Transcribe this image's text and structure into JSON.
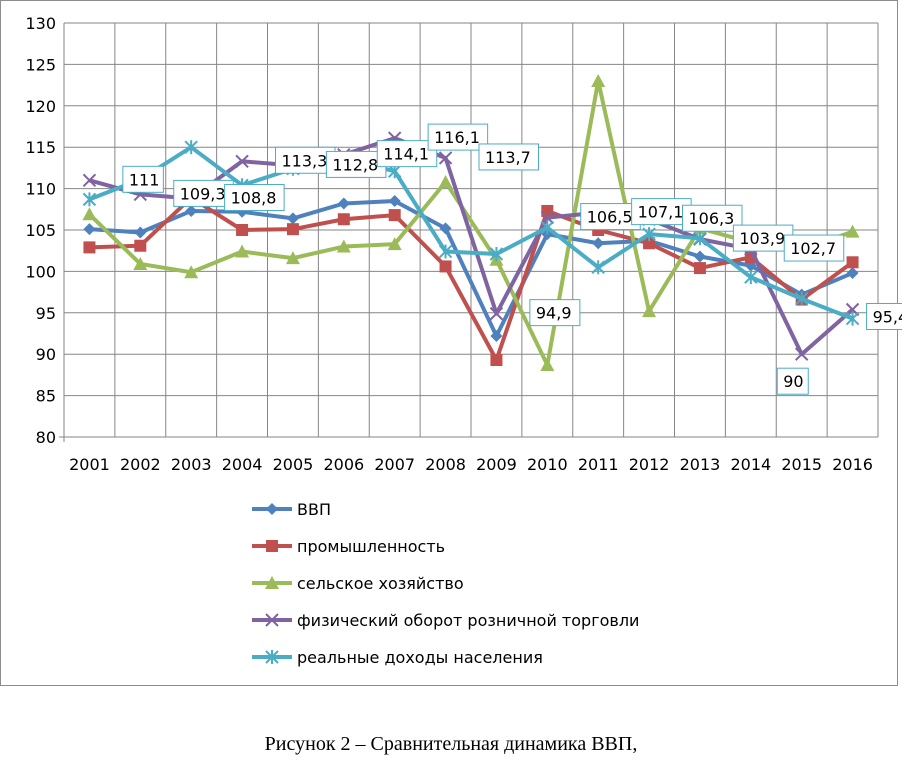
{
  "caption": "Рисунок 2 – Сравнительная динамика ВВП,",
  "chart_data": {
    "type": "line",
    "title": "",
    "xlabel": "",
    "ylabel": "",
    "ylim": [
      80,
      130
    ],
    "yticks": [
      80,
      85,
      90,
      95,
      100,
      105,
      110,
      115,
      120,
      125,
      130
    ],
    "grid": true,
    "legend_position": "bottom",
    "categories": [
      "2001",
      "2002",
      "2003",
      "2004",
      "2005",
      "2006",
      "2007",
      "2008",
      "2009",
      "2010",
      "2011",
      "2012",
      "2013",
      "2014",
      "2015",
      "2016"
    ],
    "series": [
      {
        "name": "ВВП",
        "color": "#4F81BD",
        "marker": "diamond",
        "values": [
          105.1,
          104.7,
          107.3,
          107.2,
          106.4,
          108.2,
          108.5,
          105.2,
          92.2,
          104.5,
          103.4,
          103.7,
          101.8,
          100.7,
          97.2,
          99.8
        ]
      },
      {
        "name": "промышленность",
        "color": "#C0504D",
        "marker": "square",
        "values": [
          102.9,
          103.1,
          108.9,
          105.0,
          105.1,
          106.3,
          106.8,
          100.6,
          89.3,
          107.3,
          105.0,
          103.4,
          100.4,
          101.7,
          96.6,
          101.1
        ]
      },
      {
        "name": "сельское хозяйство",
        "color": "#9BBB59",
        "marker": "triangle",
        "values": [
          106.9,
          100.9,
          99.9,
          102.4,
          101.6,
          103.0,
          103.3,
          110.8,
          101.4,
          88.7,
          123.0,
          95.2,
          105.2,
          103.5,
          102.6,
          104.8
        ]
      },
      {
        "name": "физический оборот розничной торговли",
        "color": "#8064A2",
        "marker": "x",
        "values": [
          111.0,
          109.3,
          108.8,
          113.3,
          112.8,
          114.1,
          116.1,
          113.7,
          94.9,
          106.5,
          107.1,
          106.3,
          103.9,
          102.7,
          90.0,
          95.4
        ]
      },
      {
        "name": "реальные доходы населения",
        "color": "#4BACC6",
        "marker": "star",
        "values": [
          108.7,
          111.1,
          115.0,
          110.4,
          112.4,
          113.5,
          112.1,
          102.4,
          102.1,
          105.3,
          100.5,
          104.5,
          104.0,
          99.3,
          96.7,
          94.3
        ]
      }
    ],
    "data_labels": [
      {
        "text": "111",
        "category": "2002",
        "value": 111.0
      },
      {
        "text": "109,3",
        "category": "2003",
        "value": 109.3
      },
      {
        "text": "108,8",
        "category": "2004",
        "value": 108.8
      },
      {
        "text": "113,3",
        "category": "2005",
        "value": 113.3
      },
      {
        "text": "112,8",
        "category": "2006",
        "value": 112.8
      },
      {
        "text": "114,1",
        "category": "2007",
        "value": 114.1
      },
      {
        "text": "116,1",
        "category": "2008",
        "value": 116.1
      },
      {
        "text": "113,7",
        "category": "2009",
        "value": 113.7
      },
      {
        "text": "94,9",
        "category": "2010",
        "value": 94.9
      },
      {
        "text": "106,5",
        "category": "2011",
        "value": 106.5
      },
      {
        "text": "107,1",
        "category": "2012",
        "value": 107.1
      },
      {
        "text": "106,3",
        "category": "2013",
        "value": 106.3
      },
      {
        "text": "103,9",
        "category": "2014",
        "value": 103.9
      },
      {
        "text": "102,7",
        "category": "2015",
        "value": 102.7
      },
      {
        "text": "90",
        "category": "2016",
        "value": 90.0
      },
      {
        "text": "95,4",
        "category": "2016",
        "value": 95.4
      }
    ]
  }
}
